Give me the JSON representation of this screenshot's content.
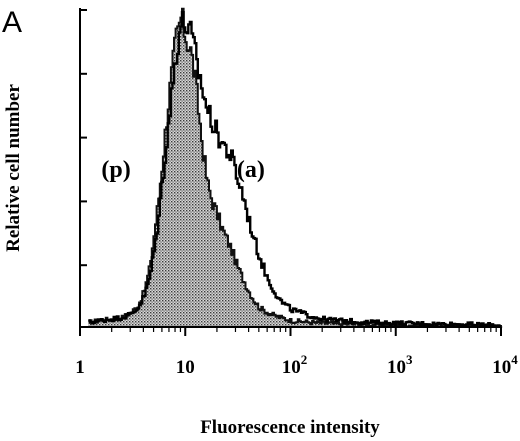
{
  "chart_data": {
    "type": "area",
    "panel_label": "A",
    "xlabel": "Fluorescence intensity",
    "ylabel": "Relative cell number",
    "xscale": "log",
    "xlim": [
      1,
      10000
    ],
    "ylim": [
      0,
      100
    ],
    "y_ticks_labeled": false,
    "x_ticks": [
      {
        "value": 1,
        "base": "1",
        "exp": ""
      },
      {
        "value": 10,
        "base": "10",
        "exp": ""
      },
      {
        "value": 100,
        "base": "10",
        "exp": "2"
      },
      {
        "value": 1000,
        "base": "10",
        "exp": "3"
      },
      {
        "value": 10000,
        "base": "10",
        "exp": "4"
      }
    ],
    "annotations": [
      {
        "text": "(p)",
        "x": 2.2,
        "y": 47
      },
      {
        "text": "(a)",
        "x": 42,
        "y": 47
      }
    ],
    "series": [
      {
        "name": "(p)",
        "style": "filled-stippled",
        "fill": "#9a9a9a",
        "x": [
          1.2,
          1.5,
          2,
          2.5,
          3,
          3.5,
          4,
          4.5,
          5,
          5.5,
          6,
          6.5,
          7,
          7.5,
          8,
          8.5,
          9,
          9.5,
          10,
          11,
          12,
          13,
          14,
          15,
          16,
          18,
          20,
          22,
          25,
          28,
          30,
          35,
          40,
          45,
          50,
          60,
          70,
          80,
          100,
          150,
          200,
          300,
          500,
          1000,
          2000,
          5000,
          10000
        ],
        "values": [
          1.5,
          2,
          2.5,
          3,
          4.5,
          6.5,
          11,
          18,
          29,
          40,
          52,
          64,
          74,
          82,
          90,
          93,
          97,
          94,
          91,
          87,
          80,
          70,
          60,
          52,
          45,
          39,
          35,
          31,
          27,
          23,
          20,
          15,
          11,
          8,
          6,
          4.5,
          3.5,
          3,
          2,
          1.5,
          1.2,
          1,
          0.8,
          0.6,
          0.5,
          0.4,
          0.3
        ]
      },
      {
        "name": "(a)",
        "style": "line",
        "color": "#000000",
        "x": [
          1.2,
          1.5,
          2,
          2.5,
          3,
          3.5,
          4,
          4.5,
          5,
          5.5,
          6,
          6.5,
          7,
          7.5,
          8,
          8.5,
          9,
          9.5,
          10,
          11,
          12,
          13,
          14,
          15,
          16,
          18,
          20,
          22,
          25,
          28,
          30,
          35,
          40,
          45,
          50,
          60,
          70,
          80,
          100,
          150,
          200,
          300,
          500,
          1000,
          2000,
          5000,
          10000
        ],
        "values": [
          1.5,
          2,
          2.5,
          3,
          4,
          6,
          9.5,
          15,
          24,
          34,
          46,
          57,
          67,
          76,
          85,
          91,
          95,
          95,
          95,
          92,
          87,
          81,
          76,
          72,
          68,
          64,
          60,
          58,
          55,
          52,
          48,
          41,
          33,
          27,
          22,
          15,
          11,
          8,
          5.5,
          3.5,
          2.5,
          2,
          1.5,
          1.2,
          1,
          0.8,
          0.5
        ]
      }
    ]
  }
}
